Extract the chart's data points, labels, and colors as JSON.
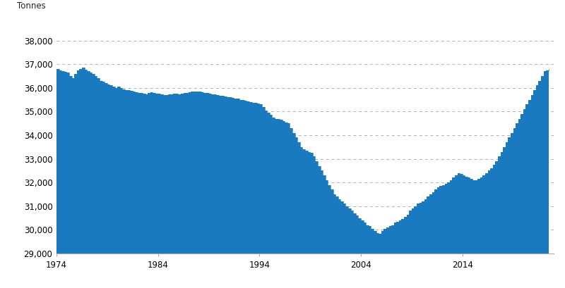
{
  "ylabel": "Tonnes",
  "fill_color": "#1a7abf",
  "line_color": "#1a7abf",
  "background_color": "#ffffff",
  "grid_color": "#b0b0b0",
  "ylim": [
    29000,
    38500
  ],
  "yticks": [
    29000,
    30000,
    31000,
    32000,
    33000,
    34000,
    35000,
    36000,
    37000,
    38000
  ],
  "ytick_labels": [
    "29,000",
    "30,000",
    "31,000",
    "32,000",
    "33,000",
    "34,000",
    "35,000",
    "36,000",
    "37,000",
    "38,000"
  ],
  "xticks": [
    1974,
    1984,
    1994,
    2004,
    2014
  ],
  "xlim_start": 1974,
  "xlim_end": 2023,
  "years": [
    1974.0,
    1974.25,
    1974.5,
    1974.75,
    1975.0,
    1975.25,
    1975.5,
    1975.75,
    1976.0,
    1976.25,
    1976.5,
    1976.75,
    1977.0,
    1977.25,
    1977.5,
    1977.75,
    1978.0,
    1978.25,
    1978.5,
    1978.75,
    1979.0,
    1979.25,
    1979.5,
    1979.75,
    1980.0,
    1980.25,
    1980.5,
    1980.75,
    1981.0,
    1981.25,
    1981.5,
    1981.75,
    1982.0,
    1982.25,
    1982.5,
    1982.75,
    1983.0,
    1983.25,
    1983.5,
    1983.75,
    1984.0,
    1984.25,
    1984.5,
    1984.75,
    1985.0,
    1985.25,
    1985.5,
    1985.75,
    1986.0,
    1986.25,
    1986.5,
    1986.75,
    1987.0,
    1987.25,
    1987.5,
    1987.75,
    1988.0,
    1988.25,
    1988.5,
    1988.75,
    1989.0,
    1989.25,
    1989.5,
    1989.75,
    1990.0,
    1990.25,
    1990.5,
    1990.75,
    1991.0,
    1991.25,
    1991.5,
    1991.75,
    1992.0,
    1992.25,
    1992.5,
    1992.75,
    1993.0,
    1993.25,
    1993.5,
    1993.75,
    1994.0,
    1994.25,
    1994.5,
    1994.75,
    1995.0,
    1995.25,
    1995.5,
    1995.75,
    1996.0,
    1996.25,
    1996.5,
    1996.75,
    1997.0,
    1997.25,
    1997.5,
    1997.75,
    1998.0,
    1998.25,
    1998.5,
    1998.75,
    1999.0,
    1999.25,
    1999.5,
    1999.75,
    2000.0,
    2000.25,
    2000.5,
    2000.75,
    2001.0,
    2001.25,
    2001.5,
    2001.75,
    2002.0,
    2002.25,
    2002.5,
    2002.75,
    2003.0,
    2003.25,
    2003.5,
    2003.75,
    2004.0,
    2004.25,
    2004.5,
    2004.75,
    2005.0,
    2005.25,
    2005.5,
    2005.75,
    2006.0,
    2006.25,
    2006.5,
    2006.75,
    2007.0,
    2007.25,
    2007.5,
    2007.75,
    2008.0,
    2008.25,
    2008.5,
    2008.75,
    2009.0,
    2009.25,
    2009.5,
    2009.75,
    2010.0,
    2010.25,
    2010.5,
    2010.75,
    2011.0,
    2011.25,
    2011.5,
    2011.75,
    2012.0,
    2012.25,
    2012.5,
    2012.75,
    2013.0,
    2013.25,
    2013.5,
    2013.75,
    2014.0,
    2014.25,
    2014.5,
    2014.75,
    2015.0,
    2015.25,
    2015.5,
    2015.75,
    2016.0,
    2016.25,
    2016.5,
    2016.75,
    2017.0,
    2017.25,
    2017.5,
    2017.75,
    2018.0,
    2018.25,
    2018.5,
    2018.75,
    2019.0,
    2019.25,
    2019.5,
    2019.75,
    2020.0,
    2020.25,
    2020.5,
    2020.75,
    2021.0,
    2021.25,
    2021.5,
    2021.75,
    2022.0,
    2022.25,
    2022.5
  ],
  "values": [
    36800,
    36750,
    36700,
    36680,
    36650,
    36500,
    36400,
    36600,
    36750,
    36800,
    36850,
    36780,
    36700,
    36650,
    36600,
    36500,
    36400,
    36300,
    36250,
    36200,
    36150,
    36100,
    36050,
    36000,
    36050,
    36000,
    35950,
    35900,
    35900,
    35880,
    35850,
    35820,
    35800,
    35780,
    35760,
    35740,
    35800,
    35820,
    35780,
    35760,
    35750,
    35730,
    35710,
    35700,
    35720,
    35740,
    35760,
    35750,
    35740,
    35760,
    35780,
    35800,
    35820,
    35840,
    35860,
    35850,
    35840,
    35820,
    35800,
    35780,
    35760,
    35740,
    35720,
    35700,
    35680,
    35660,
    35640,
    35620,
    35600,
    35580,
    35560,
    35540,
    35500,
    35480,
    35460,
    35440,
    35400,
    35380,
    35360,
    35340,
    35300,
    35200,
    35050,
    34950,
    34850,
    34750,
    34700,
    34700,
    34650,
    34600,
    34550,
    34500,
    34300,
    34100,
    33900,
    33700,
    33500,
    33400,
    33350,
    33300,
    33250,
    33100,
    32900,
    32700,
    32500,
    32300,
    32100,
    31900,
    31700,
    31500,
    31400,
    31300,
    31200,
    31100,
    31000,
    30900,
    30800,
    30700,
    30600,
    30500,
    30400,
    30300,
    30200,
    30150,
    30050,
    29950,
    29870,
    29820,
    29950,
    30050,
    30100,
    30150,
    30200,
    30300,
    30350,
    30400,
    30450,
    30550,
    30650,
    30800,
    30900,
    31000,
    31100,
    31150,
    31200,
    31300,
    31400,
    31500,
    31600,
    31700,
    31800,
    31850,
    31900,
    31950,
    32000,
    32100,
    32200,
    32300,
    32400,
    32350,
    32300,
    32250,
    32200,
    32150,
    32100,
    32100,
    32150,
    32200,
    32300,
    32400,
    32500,
    32600,
    32750,
    32900,
    33100,
    33300,
    33500,
    33700,
    33900,
    34100,
    34300,
    34500,
    34700,
    34900,
    35100,
    35300,
    35500,
    35700,
    35900,
    36100,
    36300,
    36500,
    36700,
    36750,
    36800
  ]
}
